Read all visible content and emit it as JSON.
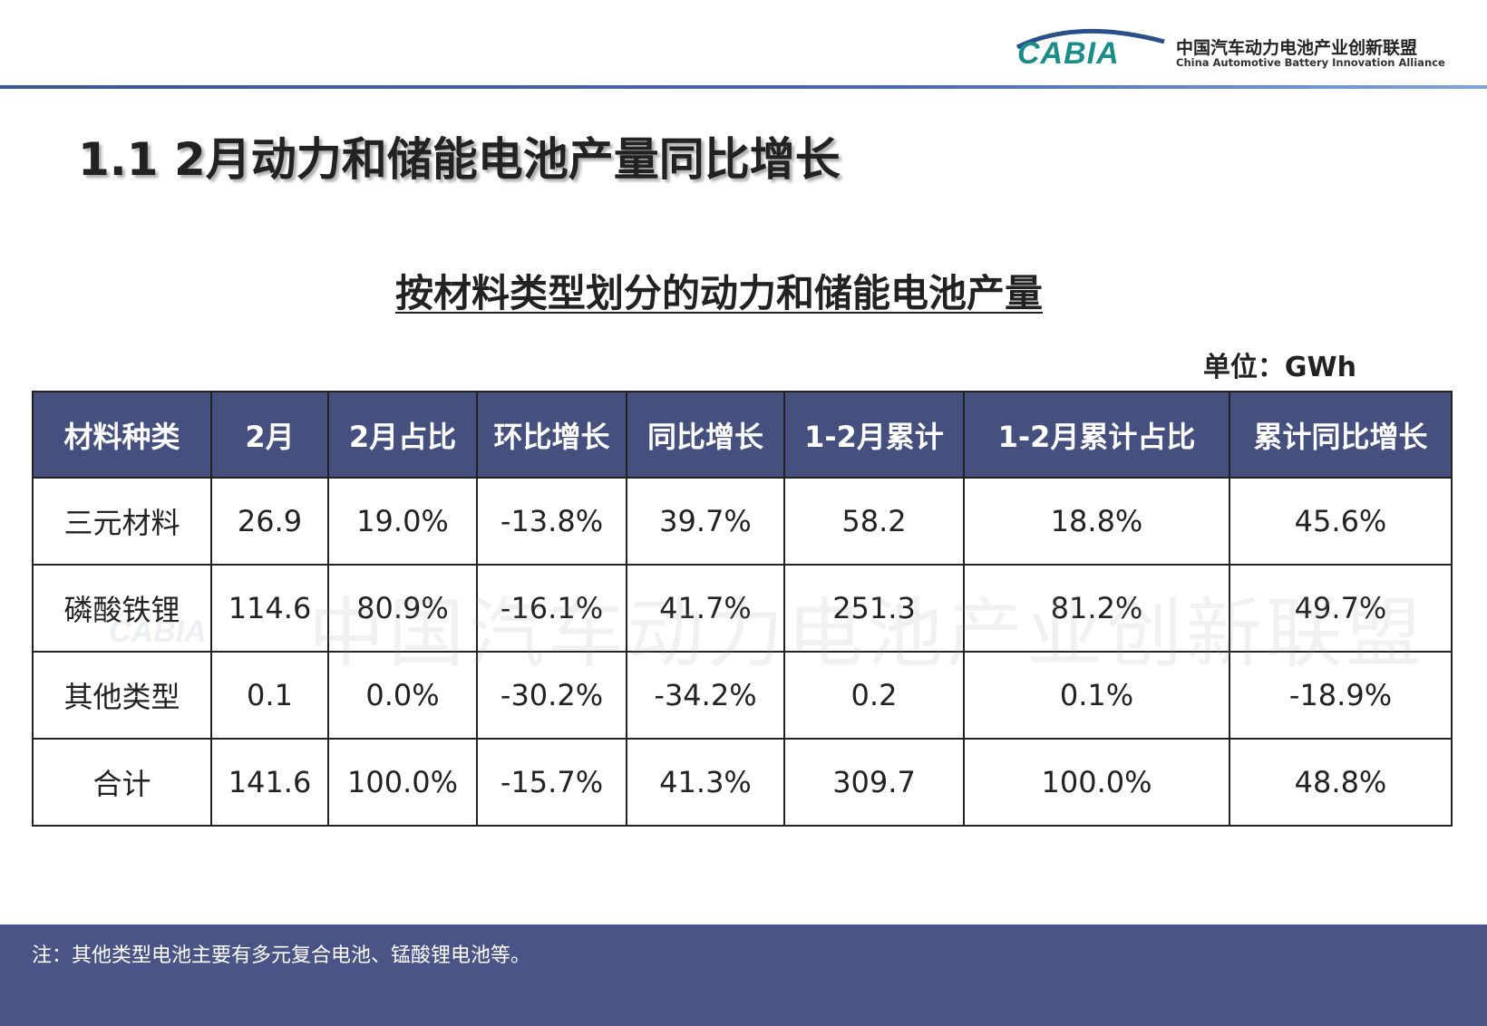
{
  "header": {
    "logo": "CABIA",
    "org_cn": "中国汽车动力电池产业创新联盟",
    "org_en": "China Automotive Battery Innovation Alliance"
  },
  "title": "1.1 2月动力和储能电池产量同比增长",
  "subtitle": "按材料类型划分的动力和储能电池产量",
  "unit": "单位：GWh",
  "table": {
    "columns": [
      "材料种类",
      "2月",
      "2月占比",
      "环比增长",
      "同比增长",
      "1-2月累计",
      "1-2月累计占比",
      "累计同比增长"
    ],
    "rows": [
      [
        "三元材料",
        "26.9",
        "19.0%",
        "-13.8%",
        "39.7%",
        "58.2",
        "18.8%",
        "45.6%"
      ],
      [
        "磷酸铁锂",
        "114.6",
        "80.9%",
        "-16.1%",
        "41.7%",
        "251.3",
        "81.2%",
        "49.7%"
      ],
      [
        "其他类型",
        "0.1",
        "0.0%",
        "-30.2%",
        "-34.2%",
        "0.2",
        "0.1%",
        "-18.9%"
      ],
      [
        "合计",
        "141.6",
        "100.0%",
        "-15.7%",
        "41.3%",
        "309.7",
        "100.0%",
        "48.8%"
      ]
    ]
  },
  "watermark": "中国汽车动力电池产业创新联盟",
  "note": "注：其他类型电池主要有多元复合电池、锰酸锂电池等。"
}
